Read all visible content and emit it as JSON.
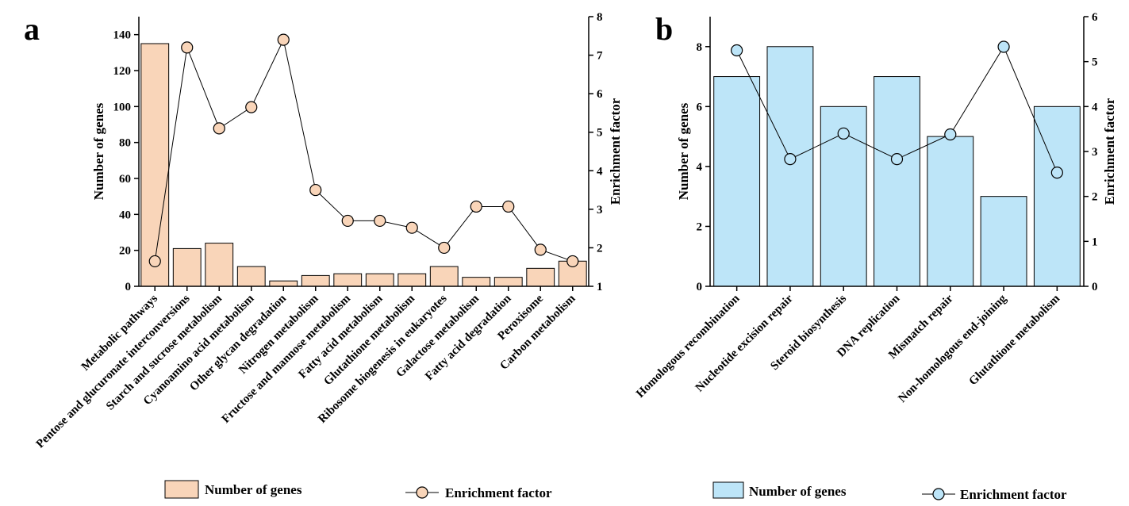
{
  "chart_data": [
    {
      "panel_label": "a",
      "type": "bar",
      "categories": [
        "Metabolic pathways",
        "Pentose and glucuronate interconversions",
        "Starch and sucrose metabolism",
        "Cyanoamino acid metabolism",
        "Other glycan degradation",
        "Nitrogen metabolism",
        "Fructose and mannose metabolism",
        "Fatty acid metabolism",
        "Glutathione metabolism",
        "Ribosome biogenesis in eukaryotes",
        "Galactose metabolism",
        "Fatty acid degradation",
        "Peroxisome",
        "Carbon metabolism"
      ],
      "series": [
        {
          "name": "Number of genes",
          "type": "bar",
          "axis": "left",
          "values": [
            135,
            21,
            24,
            11,
            3,
            6,
            7,
            7,
            7,
            11,
            5,
            5,
            10,
            14
          ]
        },
        {
          "name": "Enrichment factor",
          "type": "line",
          "axis": "right",
          "values": [
            1.65,
            7.2,
            5.1,
            5.65,
            7.4,
            3.5,
            2.7,
            2.7,
            2.52,
            2.0,
            3.07,
            3.07,
            1.95,
            1.65
          ]
        }
      ],
      "ylabel": "Number of genes",
      "y2label": "Enrichment factor",
      "ylim": [
        0,
        150
      ],
      "yticks": [
        0,
        20,
        40,
        60,
        80,
        100,
        120,
        140
      ],
      "y2lim": [
        1,
        8
      ],
      "y2ticks": [
        1,
        2,
        3,
        4,
        5,
        6,
        7,
        8
      ],
      "bar_color": "#f9d5b9",
      "marker_color": "#f9d5b9",
      "grid": false,
      "legend_position": "bottom"
    },
    {
      "panel_label": "b",
      "type": "bar",
      "categories": [
        "Homologous recombination",
        "Nucleotide excision repair",
        "Steroid biosynthesis",
        "DNA replication",
        "Mismatch repair",
        "Non-homologous end-joining",
        "Glutathione metabolism"
      ],
      "series": [
        {
          "name": "Number of genes",
          "type": "bar",
          "axis": "left",
          "values": [
            7,
            8,
            6,
            7,
            5,
            3,
            6
          ]
        },
        {
          "name": "Enrichment factor",
          "type": "line",
          "axis": "right",
          "values": [
            5.25,
            2.83,
            3.4,
            2.83,
            3.38,
            5.33,
            2.53
          ]
        }
      ],
      "ylabel": "Number of genes",
      "y2label": "Enrichment factor",
      "ylim": [
        0,
        9
      ],
      "yticks": [
        0,
        2,
        4,
        6,
        8
      ],
      "y2lim": [
        0,
        6
      ],
      "y2ticks": [
        0,
        1,
        2,
        3,
        4,
        5,
        6
      ],
      "bar_color": "#bde5f8",
      "marker_color": "#bde5f8",
      "grid": false,
      "legend_position": "bottom"
    }
  ]
}
